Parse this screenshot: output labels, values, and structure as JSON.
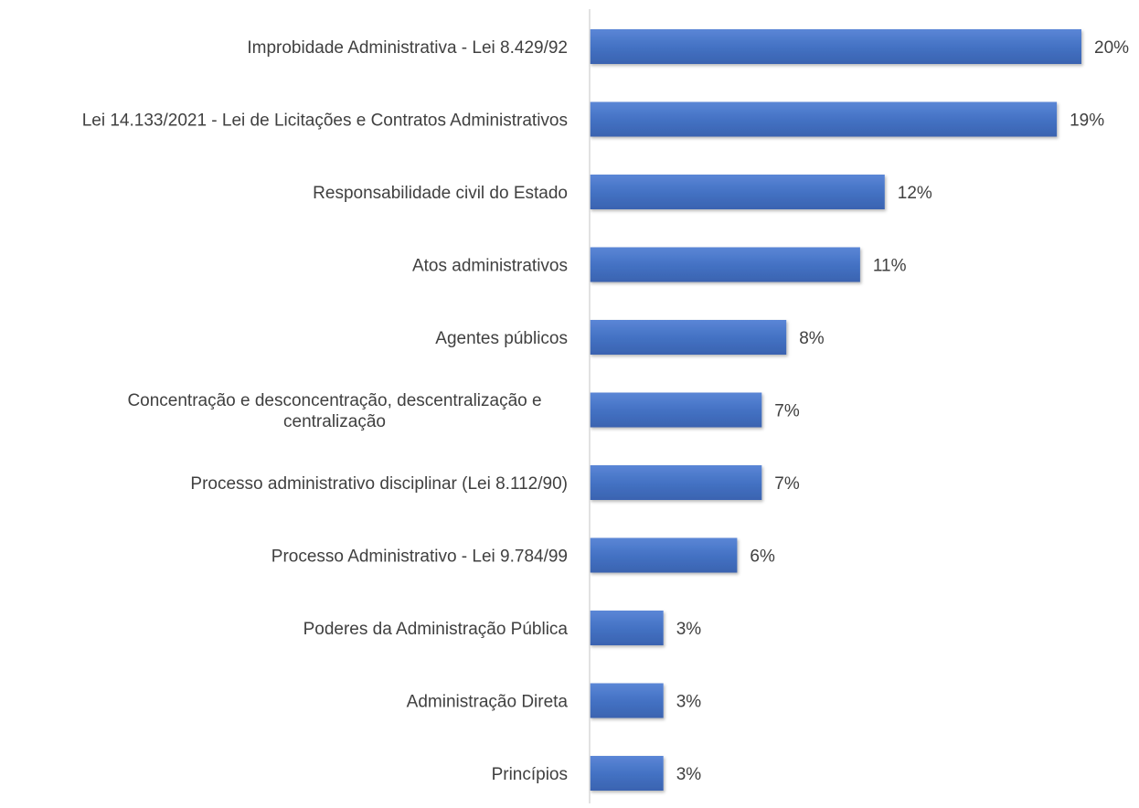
{
  "chart_data": {
    "type": "bar",
    "orientation": "horizontal",
    "title": "",
    "xlabel": "",
    "ylabel": "",
    "grid": false,
    "legend": "none",
    "bar_color": "#4472C4",
    "label_color": "#404040",
    "axis_color": "#d9d9d9",
    "xlim": [
      0,
      21
    ],
    "categories": [
      [
        "Improbidade Administrativa - Lei 8.429/92"
      ],
      [
        "Lei 14.133/2021 - Lei de Licitações e Contratos Administrativos"
      ],
      [
        "Responsabilidade civil do Estado"
      ],
      [
        "Atos administrativos"
      ],
      [
        "Agentes públicos"
      ],
      [
        "Concentração e desconcentração, descentralização e",
        "centralização"
      ],
      [
        "Processo administrativo disciplinar (Lei 8.112/90)"
      ],
      [
        "Processo Administrativo - Lei 9.784/99"
      ],
      [
        "Poderes da Administração Pública"
      ],
      [
        "Administração Direta"
      ],
      [
        "Princípios"
      ]
    ],
    "values": [
      20,
      19,
      12,
      11,
      8,
      7,
      7,
      6,
      3,
      3,
      3
    ],
    "value_labels": [
      "20%",
      "19%",
      "12%",
      "11%",
      "8%",
      "7%",
      "7%",
      "6%",
      "3%",
      "3%",
      "3%"
    ]
  }
}
